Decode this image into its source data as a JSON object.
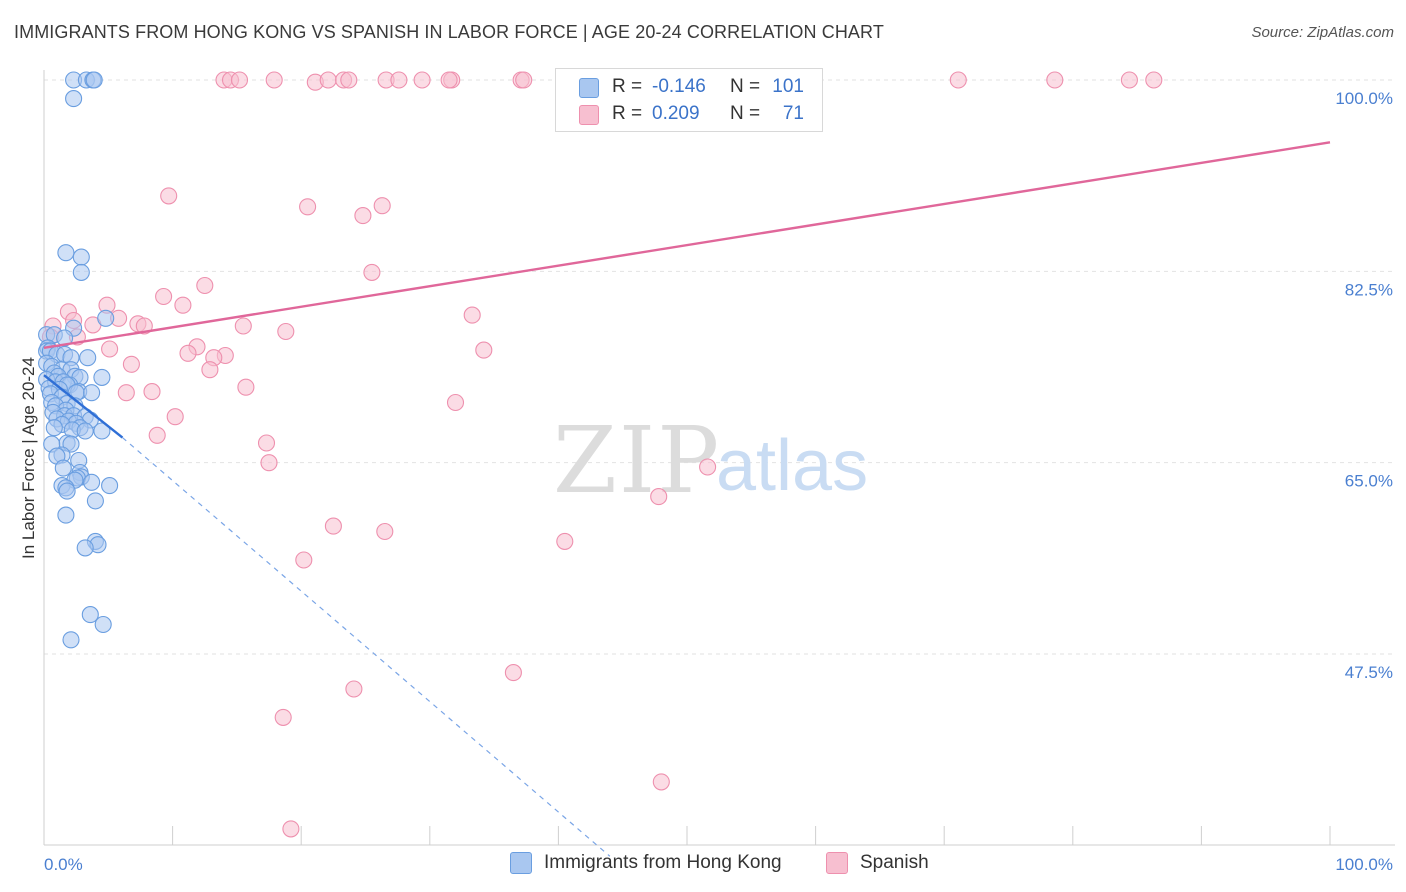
{
  "header": {
    "title": "IMMIGRANTS FROM HONG KONG VS SPANISH IN LABOR FORCE | AGE 20-24 CORRELATION CHART",
    "source": "Source: ZipAtlas.com"
  },
  "watermark": {
    "zip": "ZIP",
    "atlas": "atlas"
  },
  "stats": [
    {
      "series": "Immigrants from Hong Kong",
      "r_label": "R =",
      "r_value": "-0.146",
      "n_label": "N =",
      "n_value": "101",
      "color": "#a9c7f0",
      "stroke": "#6a9ee0"
    },
    {
      "series": "Spanish",
      "r_label": "R =",
      "r_value": "0.209",
      "n_label": "N =",
      "n_value": "71",
      "color": "#f7bfd0",
      "stroke": "#ee90ae"
    }
  ],
  "legend": {
    "items": [
      {
        "label": "Immigrants from Hong Kong",
        "color": "#a9c7f0",
        "stroke": "#6a9ee0"
      },
      {
        "label": "Spanish",
        "color": "#f7bfd0",
        "stroke": "#ee90ae"
      }
    ]
  },
  "chart_data": {
    "type": "scatter",
    "title": "IMMIGRANTS FROM HONG KONG VS SPANISH IN LABOR FORCE | AGE 20-24 CORRELATION CHART",
    "xlabel": "",
    "ylabel": "In Labor Force | Age 20-24",
    "xlim": [
      0,
      100
    ],
    "ylim": [
      29.0,
      101.5
    ],
    "x_tick_labels": [
      "0.0%",
      "100.0%"
    ],
    "y_ticks": [
      {
        "value": 100.0,
        "label": "100.0%"
      },
      {
        "value": 82.5,
        "label": "82.5%"
      },
      {
        "value": 65.0,
        "label": "65.0%"
      },
      {
        "value": 47.5,
        "label": "47.5%"
      }
    ],
    "grid": true,
    "series": [
      {
        "name": "Immigrants from Hong Kong",
        "color": "#6a9ee0",
        "fill": "#a9c7f0",
        "trend": {
          "x": [
            0.0,
            6.1
          ],
          "y": [
            73.0,
            67.3
          ],
          "dashed_extension_to": [
            44.0,
            29.0
          ]
        },
        "points": [
          [
            2.3,
            100.0
          ],
          [
            3.3,
            100.0
          ],
          [
            3.8,
            100.0
          ],
          [
            3.9,
            100.0
          ],
          [
            2.3,
            98.3
          ],
          [
            1.7,
            84.2
          ],
          [
            2.9,
            83.8
          ],
          [
            2.9,
            82.4
          ],
          [
            4.8,
            78.2
          ],
          [
            2.3,
            77.3
          ],
          [
            0.2,
            76.7
          ],
          [
            0.8,
            76.7
          ],
          [
            1.6,
            76.4
          ],
          [
            0.3,
            75.5
          ],
          [
            0.2,
            75.2
          ],
          [
            0.5,
            75.2
          ],
          [
            1.0,
            74.9
          ],
          [
            1.6,
            74.9
          ],
          [
            3.4,
            74.6
          ],
          [
            2.1,
            74.6
          ],
          [
            0.2,
            74.1
          ],
          [
            0.6,
            73.8
          ],
          [
            1.4,
            73.5
          ],
          [
            2.1,
            73.5
          ],
          [
            0.8,
            73.2
          ],
          [
            1.1,
            72.9
          ],
          [
            2.4,
            72.9
          ],
          [
            2.8,
            72.8
          ],
          [
            4.5,
            72.8
          ],
          [
            0.2,
            72.6
          ],
          [
            0.9,
            72.4
          ],
          [
            1.5,
            72.4
          ],
          [
            2.0,
            72.1
          ],
          [
            1.8,
            72.1
          ],
          [
            0.4,
            71.8
          ],
          [
            1.2,
            71.7
          ],
          [
            2.7,
            71.5
          ],
          [
            2.5,
            71.4
          ],
          [
            3.7,
            71.4
          ],
          [
            0.5,
            71.3
          ],
          [
            1.4,
            71.0
          ],
          [
            0.6,
            70.5
          ],
          [
            1.8,
            70.4
          ],
          [
            0.9,
            70.2
          ],
          [
            2.4,
            70.2
          ],
          [
            1.7,
            69.8
          ],
          [
            0.7,
            69.6
          ],
          [
            1.6,
            69.3
          ],
          [
            2.3,
            69.3
          ],
          [
            3.2,
            69.2
          ],
          [
            1.0,
            69.0
          ],
          [
            1.9,
            68.8
          ],
          [
            3.6,
            68.9
          ],
          [
            2.5,
            68.6
          ],
          [
            1.4,
            68.5
          ],
          [
            0.8,
            68.2
          ],
          [
            2.8,
            68.2
          ],
          [
            2.2,
            68.0
          ],
          [
            3.2,
            67.9
          ],
          [
            4.5,
            67.9
          ],
          [
            1.8,
            66.8
          ],
          [
            2.1,
            66.7
          ],
          [
            0.6,
            66.7
          ],
          [
            1.4,
            65.7
          ],
          [
            1.0,
            65.6
          ],
          [
            2.7,
            65.2
          ],
          [
            1.5,
            64.5
          ],
          [
            2.8,
            64.1
          ],
          [
            2.9,
            63.7
          ],
          [
            2.6,
            63.6
          ],
          [
            2.4,
            63.4
          ],
          [
            3.7,
            63.2
          ],
          [
            1.4,
            62.9
          ],
          [
            1.7,
            62.7
          ],
          [
            1.8,
            62.4
          ],
          [
            5.1,
            62.9
          ],
          [
            4.0,
            61.5
          ],
          [
            1.7,
            60.2
          ],
          [
            4.0,
            57.8
          ],
          [
            4.2,
            57.5
          ],
          [
            3.2,
            57.2
          ],
          [
            3.6,
            51.1
          ],
          [
            4.6,
            50.2
          ],
          [
            2.1,
            48.8
          ]
        ]
      },
      {
        "name": "Spanish",
        "color": "#ee90ae",
        "fill": "#f7bfd0",
        "trend": {
          "x": [
            0.0,
            100.0
          ],
          "y": [
            75.5,
            94.3
          ]
        },
        "points": [
          [
            14.0,
            100.0
          ],
          [
            14.5,
            100.0
          ],
          [
            15.2,
            100.0
          ],
          [
            17.9,
            100.0
          ],
          [
            21.1,
            99.8
          ],
          [
            22.1,
            100.0
          ],
          [
            23.3,
            100.0
          ],
          [
            23.7,
            100.0
          ],
          [
            26.6,
            100.0
          ],
          [
            27.6,
            100.0
          ],
          [
            29.4,
            100.0
          ],
          [
            31.7,
            100.0
          ],
          [
            31.5,
            100.0
          ],
          [
            37.1,
            100.0
          ],
          [
            37.3,
            100.0
          ],
          [
            46.7,
            100.0
          ],
          [
            71.1,
            100.0
          ],
          [
            78.6,
            100.0
          ],
          [
            84.4,
            100.0
          ],
          [
            86.3,
            100.0
          ],
          [
            9.7,
            89.4
          ],
          [
            20.5,
            88.4
          ],
          [
            26.3,
            88.5
          ],
          [
            24.8,
            87.6
          ],
          [
            25.5,
            82.4
          ],
          [
            12.5,
            81.2
          ],
          [
            9.3,
            80.2
          ],
          [
            10.8,
            79.4
          ],
          [
            4.9,
            79.4
          ],
          [
            1.9,
            78.8
          ],
          [
            5.8,
            78.2
          ],
          [
            2.3,
            78.0
          ],
          [
            3.8,
            77.6
          ],
          [
            7.3,
            77.7
          ],
          [
            0.7,
            77.5
          ],
          [
            7.8,
            77.5
          ],
          [
            15.5,
            77.5
          ],
          [
            18.8,
            77.0
          ],
          [
            2.6,
            76.5
          ],
          [
            0.5,
            76.5
          ],
          [
            33.3,
            78.5
          ],
          [
            34.2,
            75.3
          ],
          [
            11.9,
            75.6
          ],
          [
            5.1,
            75.4
          ],
          [
            11.2,
            75.0
          ],
          [
            14.1,
            74.8
          ],
          [
            13.2,
            74.6
          ],
          [
            6.8,
            74.0
          ],
          [
            12.9,
            73.5
          ],
          [
            15.7,
            71.9
          ],
          [
            6.4,
            71.4
          ],
          [
            8.4,
            71.5
          ],
          [
            32.0,
            70.5
          ],
          [
            10.2,
            69.2
          ],
          [
            8.8,
            67.5
          ],
          [
            17.3,
            66.8
          ],
          [
            17.5,
            65.0
          ],
          [
            51.6,
            64.6
          ],
          [
            47.8,
            61.9
          ],
          [
            22.5,
            59.2
          ],
          [
            26.5,
            58.7
          ],
          [
            40.5,
            57.8
          ],
          [
            20.2,
            56.1
          ],
          [
            36.5,
            45.8
          ],
          [
            24.1,
            44.3
          ],
          [
            18.6,
            41.7
          ],
          [
            48.0,
            35.8
          ],
          [
            19.2,
            31.5
          ]
        ]
      }
    ]
  }
}
